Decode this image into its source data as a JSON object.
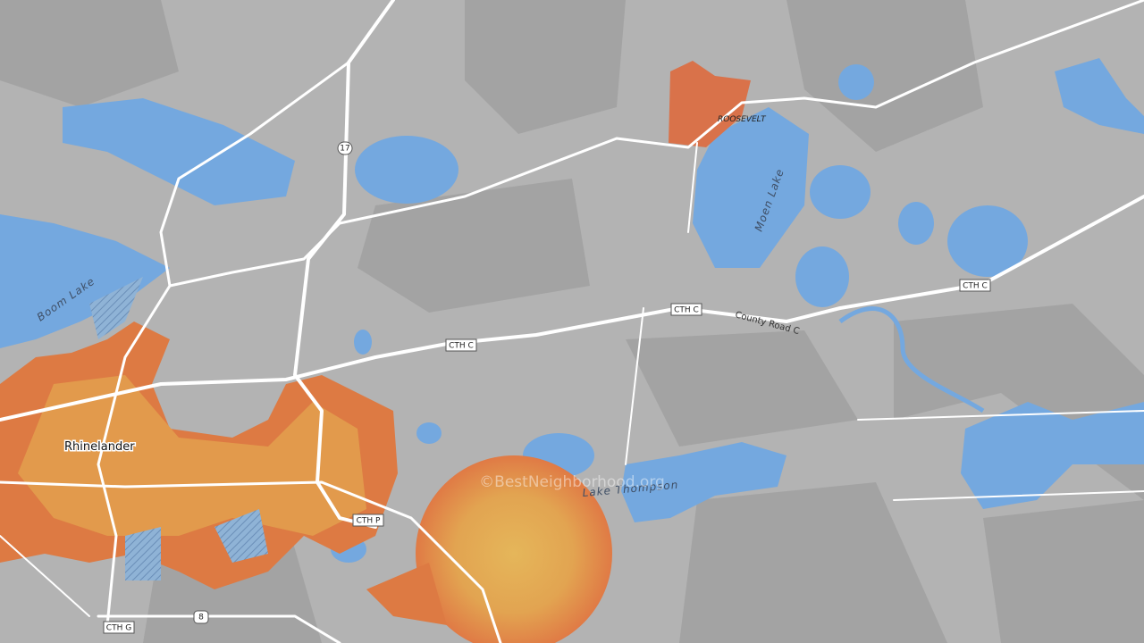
{
  "places": [
    {
      "label": "Rhinelander"
    },
    {
      "label": "ROOSEVELT"
    }
  ],
  "water": [
    {
      "label": "Boom Lake"
    },
    {
      "label": "Moen Lake"
    },
    {
      "label": "Lake Thompson"
    }
  ],
  "roads": [
    {
      "label": "County Road C"
    }
  ],
  "shields": [
    {
      "label": "17"
    },
    {
      "label": "CTH C"
    },
    {
      "label": "CTH C"
    },
    {
      "label": "CTH C"
    },
    {
      "label": "CTH P"
    },
    {
      "label": "CTH G"
    },
    {
      "label": "8"
    }
  ],
  "watermark": "©BestNeighborhood.org"
}
